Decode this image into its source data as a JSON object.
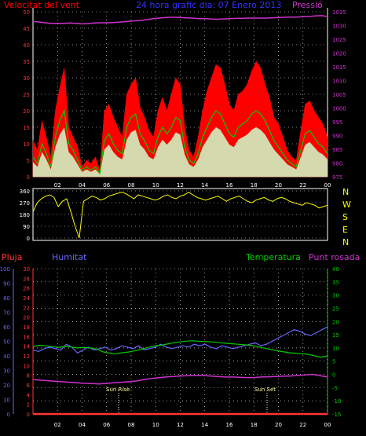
{
  "header": {
    "wind_label": "Velocitat del vent",
    "title": "24 hora grafic dia: 07 Enero 2013",
    "pressure_label": "Pressió",
    "rain_label": "Pluja",
    "humidity_label": "Humitat",
    "temp_label": "Temperatura",
    "dew_label": "Punt rosada",
    "sunrise_label": "Sun Rise",
    "sunset_label": "Sun Set"
  },
  "colors": {
    "wind": "#ff0000",
    "wind_avg": "#00cc00",
    "wind_low": "#ccffcc",
    "pressure": "#cc33cc",
    "direction": "#ffff00",
    "rain": "#ff3333",
    "humidity": "#6666ff",
    "temperature": "#00cc00",
    "dew": "#cc33cc",
    "grid": "#ffffff"
  },
  "compass_letters": [
    "N",
    "W",
    "S",
    "E",
    "N"
  ],
  "chart_data": [
    {
      "type": "area",
      "name": "wind",
      "x_ticks": [
        "02",
        "04",
        "06",
        "08",
        "10",
        "12",
        "14",
        "16",
        "18",
        "20",
        "22",
        "00"
      ],
      "y_left_ticks": [
        "0",
        "5",
        "10",
        "15",
        "20",
        "25",
        "30",
        "35",
        "40",
        "45",
        "50"
      ],
      "y_right_ticks": [
        "975",
        "980",
        "985",
        "990",
        "995",
        "1000",
        "1005",
        "1010",
        "1015",
        "1020",
        "1025",
        "1030",
        "1035"
      ],
      "ylim_left": [
        0,
        50
      ],
      "ylim_right": [
        975,
        1035
      ],
      "gust": [
        11,
        8,
        17,
        12,
        6,
        20,
        27,
        33,
        15,
        12,
        9,
        3,
        5,
        4,
        6,
        2,
        20,
        22,
        18,
        15,
        12,
        25,
        28,
        30,
        21,
        18,
        14,
        12,
        20,
        24,
        20,
        25,
        30,
        28,
        15,
        8,
        6,
        12,
        20,
        26,
        30,
        34,
        33,
        28,
        22,
        20,
        25,
        26,
        28,
        32,
        35,
        33,
        28,
        24,
        18,
        16,
        12,
        8,
        6,
        5,
        14,
        22,
        23,
        20,
        18,
        16,
        12
      ],
      "average": [
        6,
        4,
        10,
        7,
        3,
        12,
        17,
        20,
        10,
        8,
        5,
        2,
        3,
        2,
        3,
        1,
        11,
        13,
        10,
        8,
        7,
        15,
        18,
        19,
        13,
        11,
        8,
        7,
        12,
        15,
        13,
        15,
        18,
        17,
        9,
        5,
        4,
        7,
        12,
        15,
        18,
        20,
        19,
        16,
        13,
        12,
        15,
        16,
        17,
        19,
        20,
        19,
        17,
        14,
        11,
        9,
        7,
        5,
        4,
        3,
        8,
        13,
        14,
        12,
        10,
        9,
        7
      ],
      "pressure": [
        1031.5,
        1031.3,
        1031.0,
        1030.8,
        1030.8,
        1030.8,
        1030.9,
        1030.8,
        1030.6,
        1030.7,
        1030.9,
        1031.0,
        1031.0,
        1031.1,
        1031.2,
        1031.4,
        1031.6,
        1031.8,
        1032.0,
        1032.3,
        1032.6,
        1032.8,
        1033.0,
        1033.0,
        1032.9,
        1032.8,
        1032.7,
        1032.5,
        1032.5,
        1032.4,
        1032.3,
        1032.4,
        1032.5,
        1032.6,
        1032.6,
        1032.7,
        1032.7,
        1032.7,
        1032.7,
        1032.8,
        1032.9,
        1033.0,
        1033.1,
        1033.1,
        1033.2,
        1033.3,
        1033.5,
        1033.6,
        1033.3
      ]
    },
    {
      "type": "line",
      "name": "wind direction",
      "y_ticks": [
        "0",
        "90",
        "180",
        "270",
        "360"
      ],
      "ylim": [
        0,
        360
      ],
      "values": [
        200,
        270,
        300,
        320,
        330,
        310,
        240,
        280,
        300,
        200,
        90,
        0,
        280,
        300,
        320,
        310,
        290,
        300,
        320,
        330,
        340,
        350,
        340,
        320,
        300,
        330,
        320,
        310,
        300,
        290,
        300,
        320,
        330,
        310,
        300,
        320,
        330,
        350,
        330,
        310,
        300,
        290,
        300,
        310,
        320,
        300,
        280,
        300,
        310,
        320,
        300,
        280,
        270,
        290,
        300,
        310,
        290,
        280,
        300,
        310,
        300,
        280,
        270,
        260,
        250,
        270,
        260,
        250,
        230,
        240,
        250
      ]
    },
    {
      "type": "line",
      "name": "humidity temperature dew",
      "x_ticks": [
        "02",
        "04",
        "06",
        "08",
        "10",
        "12",
        "14",
        "16",
        "18",
        "20",
        "22",
        "00"
      ],
      "rain_ticks": [
        "0",
        "2",
        "4",
        "6",
        "8",
        "10",
        "12",
        "14",
        "16",
        "18",
        "20",
        "22",
        "24",
        "26",
        "28",
        "30"
      ],
      "humidity_ticks": [
        "0",
        "10",
        "20",
        "30",
        "40",
        "50",
        "60",
        "70",
        "80",
        "90",
        "100"
      ],
      "temp_ticks": [
        "-15",
        "-10",
        "-5",
        "0",
        "5",
        "10",
        "15",
        "20",
        "25",
        "30",
        "35",
        "40"
      ],
      "humidity": [
        44,
        43,
        45,
        46,
        45,
        44,
        48,
        46,
        42,
        44,
        46,
        44,
        45,
        46,
        44,
        45,
        47,
        46,
        45,
        47,
        44,
        45,
        46,
        48,
        46,
        45,
        46,
        47,
        46,
        48,
        47,
        48,
        46,
        45,
        47,
        46,
        45,
        46,
        47,
        48,
        49,
        47,
        48,
        50,
        52,
        54,
        56,
        58,
        57,
        55,
        54,
        56,
        58,
        60
      ],
      "temperature": [
        10.5,
        11.0,
        10.8,
        10.5,
        10.2,
        10.6,
        10.4,
        10.0,
        10.2,
        10.0,
        9.5,
        8.5,
        8.0,
        7.8,
        8.2,
        8.5,
        9.0,
        9.5,
        10.2,
        10.8,
        11.0,
        11.5,
        12.0,
        12.3,
        12.6,
        12.7,
        12.5,
        12.4,
        12.3,
        12.0,
        11.8,
        11.6,
        11.4,
        11.2,
        11.0,
        10.5,
        10.0,
        9.5,
        9.0,
        8.6,
        8.2,
        8.0,
        7.8,
        7.6,
        7.0,
        6.5,
        7.0
      ],
      "dew": [
        -2.0,
        -2.2,
        -2.4,
        -2.6,
        -2.8,
        -3.0,
        -3.2,
        -3.4,
        -3.5,
        -3.6,
        -3.4,
        -3.2,
        -3.0,
        -2.8,
        -2.5,
        -2.0,
        -1.6,
        -1.3,
        -1.0,
        -0.8,
        -0.6,
        -0.5,
        -0.4,
        -0.4,
        -0.6,
        -0.8,
        -1.0,
        -1.0,
        -1.1,
        -1.2,
        -1.2,
        -1.0,
        -0.9,
        -0.8,
        -0.7,
        -0.6,
        -0.4,
        -0.2,
        0.0,
        -0.5,
        -1.0
      ],
      "rain": 0
    }
  ]
}
